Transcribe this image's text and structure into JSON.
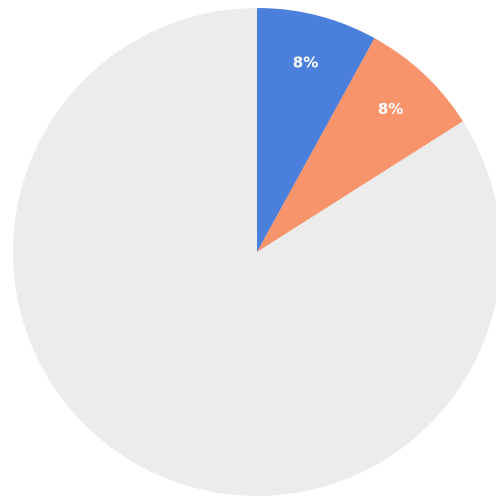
{
  "chart_data": {
    "type": "pie",
    "slices": [
      {
        "label": "8%",
        "value": 8,
        "color": "#4a7fdc"
      },
      {
        "label": "8%",
        "value": 8,
        "color": "#f8946c"
      },
      {
        "value": 84,
        "color": "#ececec"
      }
    ],
    "start_angle_deg": 0,
    "direction": "clockwise",
    "legend": "none"
  }
}
